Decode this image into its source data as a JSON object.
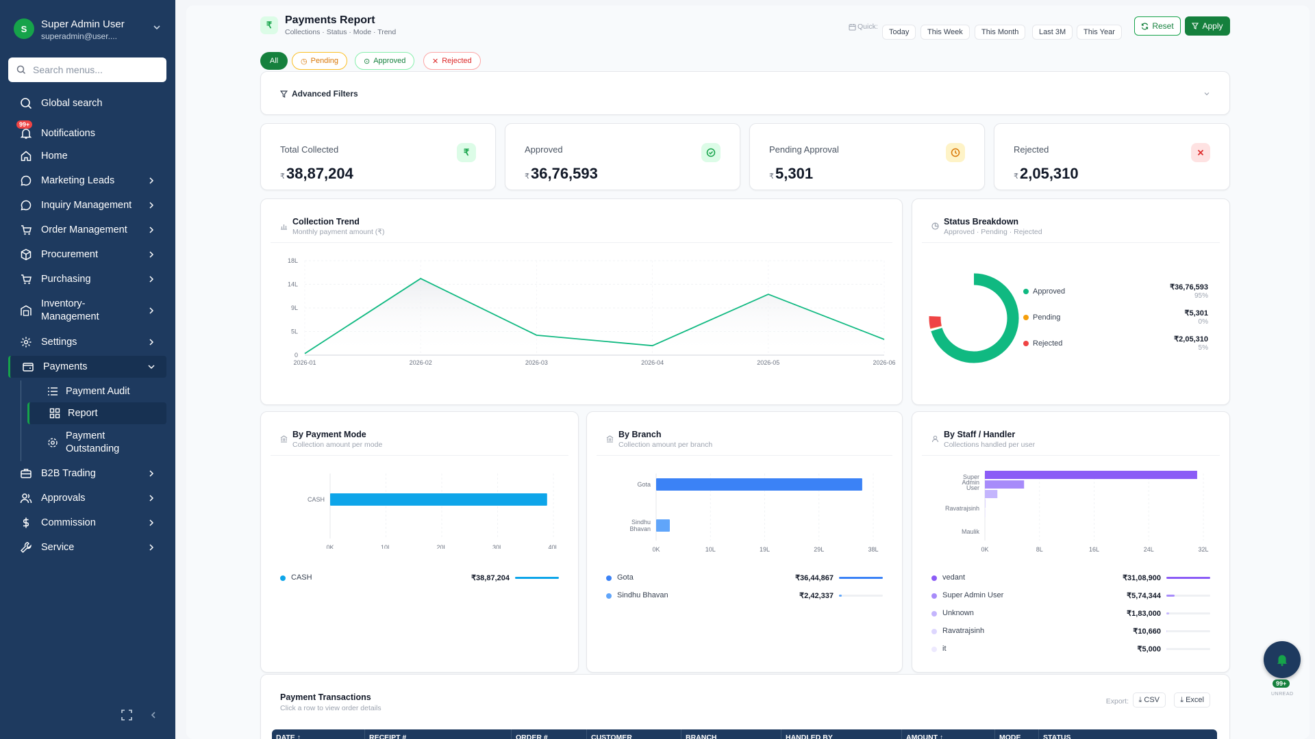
{
  "sidebar": {
    "user": {
      "initial": "S",
      "name": "Super Admin User",
      "email": "superadmin@user...."
    },
    "search_placeholder": "Search menus...",
    "items": [
      {
        "label": "Global search"
      },
      {
        "label": "Notifications",
        "badge": "99+"
      },
      {
        "label": "Home"
      },
      {
        "label": "Marketing Leads"
      },
      {
        "label": "Inquiry Management"
      },
      {
        "label": "Order Management"
      },
      {
        "label": "Procurement"
      },
      {
        "label": "Purchasing"
      },
      {
        "label": "Inventory-",
        "label2": "Management"
      },
      {
        "label": "Settings"
      },
      {
        "label": "Payments"
      },
      {
        "label": "B2B Trading"
      },
      {
        "label": "Approvals"
      },
      {
        "label": "Commission"
      },
      {
        "label": "Service"
      }
    ],
    "payments_sub": [
      {
        "label": "Payment Audit"
      },
      {
        "label": "Report"
      },
      {
        "label": "Payment",
        "label2": "Outstanding"
      }
    ]
  },
  "header": {
    "title": "Payments Report",
    "subtitle": "Collections · Status · Mode · Trend",
    "quick_label": "Quick:",
    "quick": [
      "Today",
      "This Week",
      "This Month",
      "Last 3M",
      "This Year"
    ],
    "reset_label": "Reset",
    "apply_label": "Apply"
  },
  "status_tabs": [
    "All",
    "Pending",
    "Approved",
    "Rejected"
  ],
  "advanced_filters_label": "Advanced Filters",
  "kpis": [
    {
      "label": "Total Collected",
      "currency": "₹",
      "value": "38,87,204",
      "color": "#16a34a",
      "bg": "#dcfce7"
    },
    {
      "label": "Approved",
      "currency": "₹",
      "value": "36,76,593",
      "color": "#16a34a",
      "bg": "#dcfce7"
    },
    {
      "label": "Pending Approval",
      "currency": "₹",
      "value": "5,301",
      "color": "#d97706",
      "bg": "#fef3c7"
    },
    {
      "label": "Rejected",
      "currency": "₹",
      "value": "2,05,310",
      "color": "#dc2626",
      "bg": "#fee2e2"
    }
  ],
  "trend": {
    "title": "Collection Trend",
    "subtitle": "Monthly payment amount (₹)",
    "chart_data": {
      "type": "area",
      "x": [
        "2026-01",
        "2026-02",
        "2026-03",
        "2026-04",
        "2026-05",
        "2026-06"
      ],
      "y_ticks": [
        "0",
        "5L",
        "9L",
        "14L",
        "18L"
      ],
      "ylim": [
        0,
        18
      ],
      "values": [
        0.3,
        14.6,
        3.8,
        1.8,
        11.6,
        3.0
      ],
      "color": "#10b981"
    }
  },
  "status_breakdown": {
    "title": "Status Breakdown",
    "subtitle": "Approved · Pending · Rejected",
    "items": [
      {
        "label": "Approved",
        "amount": "₹36,76,593",
        "pct": "95%",
        "value": 3676593,
        "color": "#10b981"
      },
      {
        "label": "Pending",
        "amount": "₹5,301",
        "pct": "0%",
        "value": 5301,
        "color": "#f59e0b"
      },
      {
        "label": "Rejected",
        "amount": "₹2,05,310",
        "pct": "5%",
        "value": 205310,
        "color": "#ef4444"
      }
    ]
  },
  "by_mode": {
    "title": "By Payment Mode",
    "subtitle": "Collection amount per mode",
    "chart_data": {
      "type": "bar",
      "categories": [
        "CASH"
      ],
      "values": [
        38.87
      ],
      "x_ticks": [
        "0K",
        "10L",
        "20L",
        "30L",
        "40L"
      ],
      "xlim": [
        0,
        40
      ],
      "color": "#0ea5e9"
    },
    "legend": [
      {
        "name": "CASH",
        "amount": "₹38,87,204",
        "fraction": 1.0,
        "color": "#0ea5e9"
      }
    ]
  },
  "by_branch": {
    "title": "By Branch",
    "subtitle": "Collection amount per branch",
    "chart_data": {
      "type": "bar",
      "categories": [
        "Gota",
        "Sindhu Bhavan"
      ],
      "values": [
        36.45,
        2.42
      ],
      "x_ticks": [
        "0K",
        "10L",
        "19L",
        "29L",
        "38L"
      ],
      "xlim": [
        0,
        38.4
      ],
      "colors": [
        "#3b82f6",
        "#60a5fa"
      ]
    },
    "legend": [
      {
        "name": "Gota",
        "amount": "₹36,44,867",
        "fraction": 1.0,
        "color": "#3b82f6"
      },
      {
        "name": "Sindhu Bhavan",
        "amount": "₹2,42,337",
        "fraction": 0.066,
        "color": "#60a5fa"
      }
    ]
  },
  "by_staff": {
    "title": "By Staff / Handler",
    "subtitle": "Collections handled per user",
    "chart_data": {
      "type": "bar",
      "y_labels": [
        "Super Admin User",
        "Ravatrajsinh",
        "Maulik"
      ],
      "bars": [
        {
          "name": "vedant",
          "value": 31.09,
          "color": "#8b5cf6"
        },
        {
          "name": "Super Admin User",
          "value": 5.74,
          "color": "#a78bfa"
        },
        {
          "name": "Unknown",
          "value": 1.83,
          "color": "#c4b5fd"
        },
        {
          "name": "Ravatrajsinh",
          "value": 0.1066,
          "color": "#ddd6fe"
        },
        {
          "name": "it",
          "value": 0.05,
          "color": "#ede9fe"
        }
      ],
      "x_ticks": [
        "0K",
        "8L",
        "16L",
        "24L",
        "32L"
      ],
      "xlim": [
        0,
        32
      ]
    },
    "legend": [
      {
        "name": "vedant",
        "amount": "₹31,08,900",
        "fraction": 1.0,
        "color": "#8b5cf6"
      },
      {
        "name": "Super Admin User",
        "amount": "₹5,74,344",
        "fraction": 0.185,
        "color": "#a78bfa"
      },
      {
        "name": "Unknown",
        "amount": "₹1,83,000",
        "fraction": 0.059,
        "color": "#c4b5fd"
      },
      {
        "name": "Ravatrajsinh",
        "amount": "₹10,660",
        "fraction": 0.004,
        "color": "#ddd6fe"
      },
      {
        "name": "it",
        "amount": "₹5,000",
        "fraction": 0.002,
        "color": "#ede9fe"
      }
    ]
  },
  "transactions": {
    "title": "Payment Transactions",
    "subtitle": "Click a row to view order details",
    "export_label": "Export:",
    "csv_label": "CSV",
    "excel_label": "Excel",
    "columns": [
      "DATE ↑",
      "RECEIPT #",
      "ORDER #",
      "CUSTOMER",
      "BRANCH",
      "HANDLED BY",
      "AMOUNT ↑",
      "MODE",
      "STATUS"
    ]
  },
  "fab": {
    "badge": "99+",
    "label": "UNREAD"
  }
}
